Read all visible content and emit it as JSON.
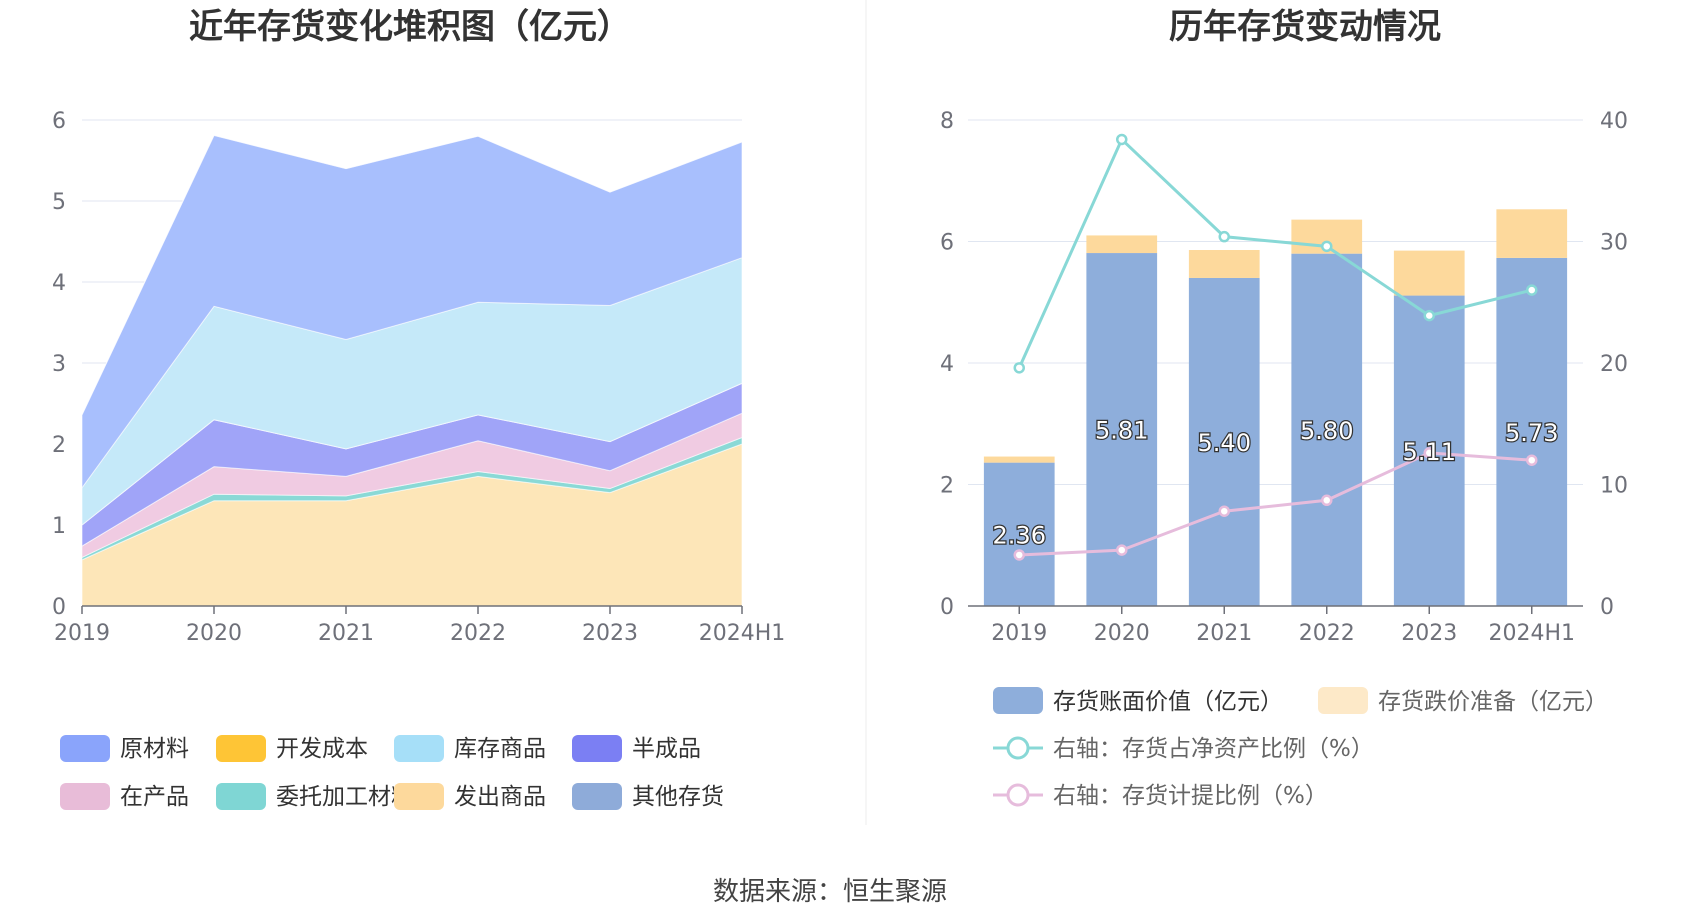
{
  "source_text": "数据来源：恒生聚源",
  "chart_data": [
    {
      "type": "area",
      "title": "近年存货变化堆积图（亿元）",
      "categories": [
        "2019",
        "2020",
        "2021",
        "2022",
        "2023",
        "2024H1"
      ],
      "y_ticks": [
        "0",
        "1",
        "2",
        "3",
        "4",
        "5",
        "6"
      ],
      "ylim": [
        0,
        6
      ],
      "stacked": true,
      "legend_position": "bottom",
      "series": [
        {
          "name": "发出商品",
          "color": "#fde6b8",
          "values": [
            0.57,
            1.3,
            1.3,
            1.6,
            1.4,
            2.0
          ]
        },
        {
          "name": "委托加工材料",
          "color": "#8ad9d6",
          "values": [
            0.03,
            0.08,
            0.06,
            0.06,
            0.05,
            0.08
          ]
        },
        {
          "name": "在产品",
          "color": "#f0cbe2",
          "values": [
            0.14,
            0.34,
            0.24,
            0.38,
            0.22,
            0.3
          ]
        },
        {
          "name": "半成品",
          "color": "#a0a4f8",
          "values": [
            0.26,
            0.58,
            0.34,
            0.32,
            0.36,
            0.37
          ]
        },
        {
          "name": "开发成本",
          "color": "#f6c53b",
          "values": [
            0.0,
            0.0,
            0.0,
            0.0,
            0.0,
            0.0
          ]
        },
        {
          "name": "库存商品",
          "color": "#c5e9f9",
          "values": [
            0.46,
            1.4,
            1.35,
            1.39,
            1.68,
            1.55
          ]
        },
        {
          "name": "原材料",
          "color": "#a8bffd",
          "values": [
            0.9,
            2.11,
            2.11,
            2.05,
            1.4,
            1.43
          ]
        },
        {
          "name": "其他存货",
          "color": "#90aad8",
          "values": [
            0.0,
            0.0,
            0.0,
            0.0,
            0.0,
            0.0
          ]
        }
      ],
      "legend": [
        {
          "name": "原材料",
          "color": "#8aa4fb"
        },
        {
          "name": "开发成本",
          "color": "#fec536"
        },
        {
          "name": "库存商品",
          "color": "#a6dff8"
        },
        {
          "name": "半成品",
          "color": "#7b7ff3"
        },
        {
          "name": "在产品",
          "color": "#e8bcd8"
        },
        {
          "name": "委托加工材料",
          "color": "#7fd6d4"
        },
        {
          "name": "发出商品",
          "color": "#fdd99c"
        },
        {
          "name": "其他存货",
          "color": "#8eabd9"
        }
      ]
    },
    {
      "type": "bar",
      "title": "历年存货变动情况",
      "categories": [
        "2019",
        "2020",
        "2021",
        "2022",
        "2023",
        "2024H1"
      ],
      "y_left_ticks": [
        "0",
        "2",
        "4",
        "6",
        "8"
      ],
      "ylim_left": [
        0,
        8
      ],
      "y_right_ticks": [
        "0",
        "10",
        "20",
        "30",
        "40"
      ],
      "ylim_right": [
        0,
        40
      ],
      "stacked": true,
      "legend_position": "bottom",
      "series": [
        {
          "name": "存货账面价值（亿元）",
          "kind": "bar",
          "axis": "left",
          "color": "#8eaedb",
          "values": [
            2.36,
            5.81,
            5.4,
            5.8,
            5.11,
            5.73
          ],
          "labels": [
            "2.36",
            "5.81",
            "5.40",
            "5.80",
            "5.11",
            "5.73"
          ]
        },
        {
          "name": "存货跌价准备（亿元）",
          "kind": "bar",
          "axis": "left",
          "color": "#fdd99c",
          "values": [
            0.1,
            0.29,
            0.46,
            0.56,
            0.74,
            0.8
          ]
        },
        {
          "name": "右轴：存货占净资产比例（%）",
          "kind": "line",
          "axis": "right",
          "color": "#88d8d6",
          "values": [
            19.6,
            38.4,
            30.4,
            29.6,
            23.9,
            26.0
          ]
        },
        {
          "name": "右轴：存货计提比例（%）",
          "kind": "line",
          "axis": "right",
          "color": "#e6bcdc",
          "values": [
            4.2,
            4.6,
            7.8,
            8.7,
            12.6,
            12.0
          ]
        }
      ]
    }
  ]
}
